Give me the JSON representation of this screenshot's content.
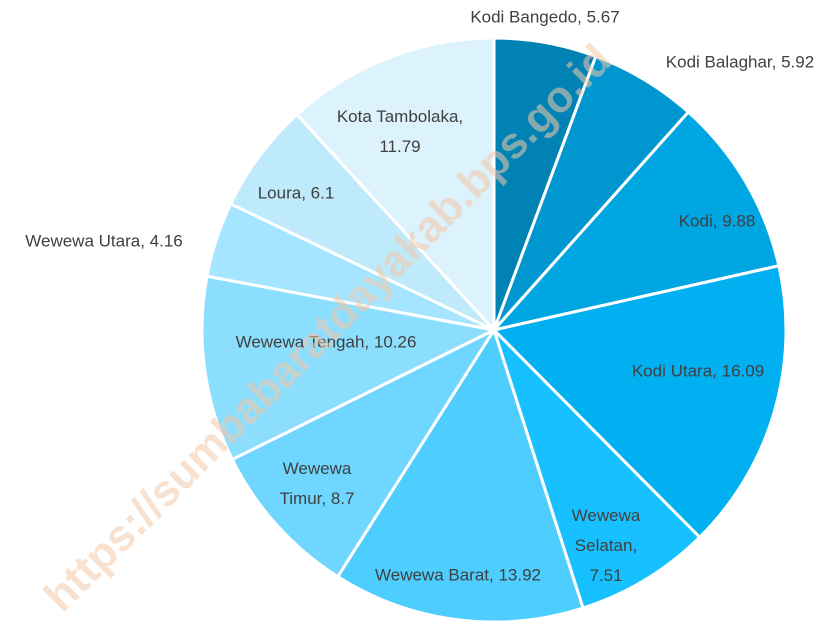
{
  "chart_data": {
    "type": "pie",
    "values": [
      5.67,
      5.92,
      9.88,
      16.09,
      7.51,
      13.92,
      8.7,
      10.26,
      4.16,
      6.1,
      11.79
    ],
    "value_labels": [
      "Kodi Bangedo, 5.67",
      "Kodi Balaghar, 5.92",
      "Kodi, 9.88",
      "Kodi Utara, 16.09",
      "Wewewa\nSelatan,\n7.51",
      "Wewewa Barat, 13.92",
      "Wewewa\nTimur, 8.7",
      "Wewewa Tengah, 10.26",
      "Wewewa Utara, 4.16",
      "Loura, 6.1",
      "Kota Tambolaka,\n11.79"
    ],
    "colors": [
      "#0082b4",
      "#0096cf",
      "#00a6e2",
      "#00b0f0",
      "#17c1ff",
      "#4ecdff",
      "#6fd6ff",
      "#8cdeff",
      "#a6e5ff",
      "#bfeafc",
      "#dcf3fd"
    ],
    "watermark": "https://sumbabaratdayakab.bps.go.id"
  }
}
